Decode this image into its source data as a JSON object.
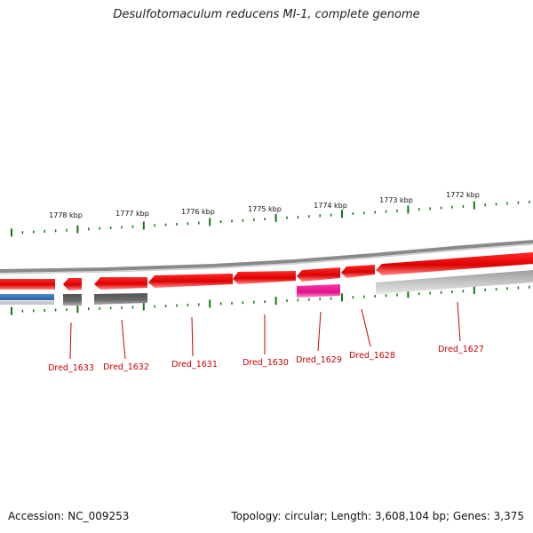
{
  "title": "Desulfotomaculum reducens MI-1, complete genome",
  "footer": {
    "accession": "Accession: NC_009253",
    "summary": "Topology: circular; Length: 3,608,104 bp; Genes: 3,375"
  },
  "colors": {
    "forward_gene": "#ee0000",
    "highlight_gene": "#ee1199",
    "blue_feature": "#3377bb",
    "dark_gray_feature": "#666666",
    "light_gray_feature": "#bbbbbb",
    "backbone": "#888888",
    "tick": "#117711",
    "label": "#cc0000"
  },
  "scale": {
    "ticks": [
      "1778 kbp",
      "1777 kbp",
      "1776 kbp",
      "1775 kbp",
      "1774 kbp",
      "1773 kbp",
      "1772 kbp"
    ]
  },
  "genes": [
    {
      "name": "Dred_1633"
    },
    {
      "name": "Dred_1632"
    },
    {
      "name": "Dred_1631"
    },
    {
      "name": "Dred_1630"
    },
    {
      "name": "Dred_1629"
    },
    {
      "name": "Dred_1628"
    },
    {
      "name": "Dred_1627"
    }
  ]
}
